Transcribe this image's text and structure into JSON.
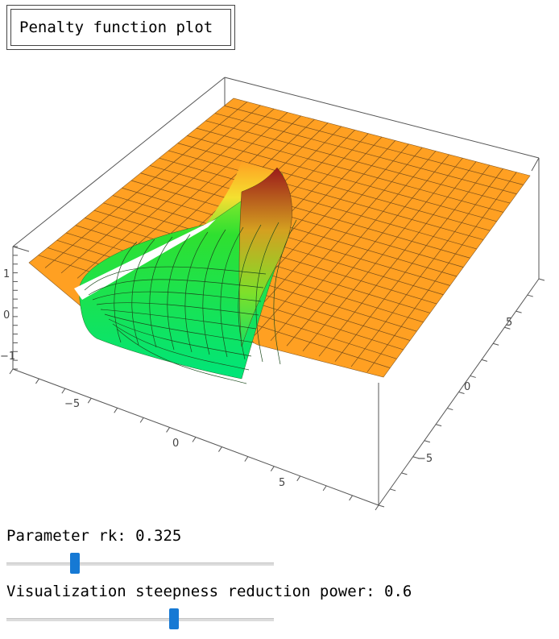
{
  "title": "Penalty function plot",
  "controls": {
    "rk": {
      "label": "Parameter rk:",
      "value": "0.325",
      "min": 0,
      "max": 1,
      "position": 0.255
    },
    "power": {
      "label": "Visualization steepness reduction power:",
      "value": "0.6",
      "min": 0,
      "max": 1,
      "position": 0.625
    }
  },
  "colors": {
    "surface_high": "#ffa022",
    "surface_low": "#00e57a",
    "ridge": "#b22222",
    "slider": "#1679d4"
  },
  "chart_data": {
    "type": "surface3d",
    "title": "",
    "xlabel": "",
    "ylabel": "",
    "zlabel": "",
    "x_ticks": [
      "−5",
      "0",
      "5"
    ],
    "y_ticks": [
      "−5",
      "0",
      "5"
    ],
    "z_ticks": [
      "−1",
      "0",
      "1"
    ],
    "xlim": [
      -8,
      8
    ],
    "ylim": [
      -8,
      8
    ],
    "zlim": [
      -1.5,
      1.5
    ],
    "plateau_z": 1,
    "trough_z": -1
  }
}
